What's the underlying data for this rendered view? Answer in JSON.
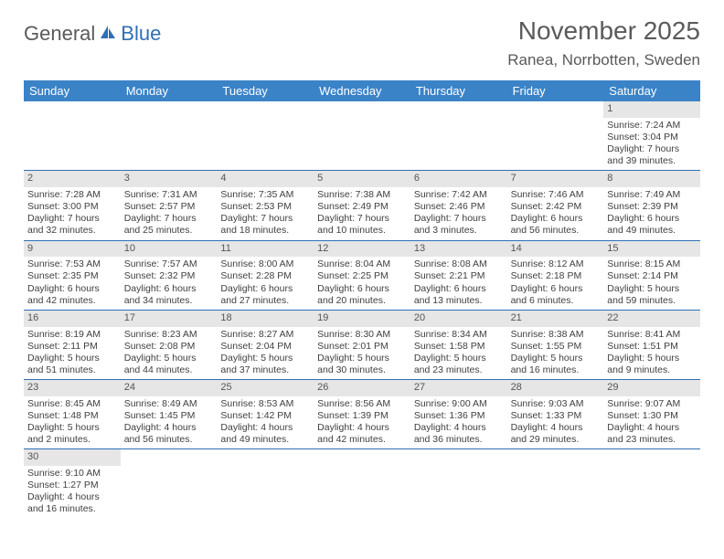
{
  "logo": {
    "text1": "General",
    "text2": "Blue"
  },
  "title": "November 2025",
  "location": "Ranea, Norrbotten, Sweden",
  "weekdays": [
    "Sunday",
    "Monday",
    "Tuesday",
    "Wednesday",
    "Thursday",
    "Friday",
    "Saturday"
  ],
  "colors": {
    "header_bg": "#3b83c7",
    "border": "#2f6fb5",
    "daynum_bg": "#e6e6e6",
    "text": "#404040"
  },
  "weeks": [
    [
      null,
      null,
      null,
      null,
      null,
      null,
      {
        "n": "1",
        "sunrise": "Sunrise: 7:24 AM",
        "sunset": "Sunset: 3:04 PM",
        "daylight": "Daylight: 7 hours and 39 minutes."
      }
    ],
    [
      {
        "n": "2",
        "sunrise": "Sunrise: 7:28 AM",
        "sunset": "Sunset: 3:00 PM",
        "daylight": "Daylight: 7 hours and 32 minutes."
      },
      {
        "n": "3",
        "sunrise": "Sunrise: 7:31 AM",
        "sunset": "Sunset: 2:57 PM",
        "daylight": "Daylight: 7 hours and 25 minutes."
      },
      {
        "n": "4",
        "sunrise": "Sunrise: 7:35 AM",
        "sunset": "Sunset: 2:53 PM",
        "daylight": "Daylight: 7 hours and 18 minutes."
      },
      {
        "n": "5",
        "sunrise": "Sunrise: 7:38 AM",
        "sunset": "Sunset: 2:49 PM",
        "daylight": "Daylight: 7 hours and 10 minutes."
      },
      {
        "n": "6",
        "sunrise": "Sunrise: 7:42 AM",
        "sunset": "Sunset: 2:46 PM",
        "daylight": "Daylight: 7 hours and 3 minutes."
      },
      {
        "n": "7",
        "sunrise": "Sunrise: 7:46 AM",
        "sunset": "Sunset: 2:42 PM",
        "daylight": "Daylight: 6 hours and 56 minutes."
      },
      {
        "n": "8",
        "sunrise": "Sunrise: 7:49 AM",
        "sunset": "Sunset: 2:39 PM",
        "daylight": "Daylight: 6 hours and 49 minutes."
      }
    ],
    [
      {
        "n": "9",
        "sunrise": "Sunrise: 7:53 AM",
        "sunset": "Sunset: 2:35 PM",
        "daylight": "Daylight: 6 hours and 42 minutes."
      },
      {
        "n": "10",
        "sunrise": "Sunrise: 7:57 AM",
        "sunset": "Sunset: 2:32 PM",
        "daylight": "Daylight: 6 hours and 34 minutes."
      },
      {
        "n": "11",
        "sunrise": "Sunrise: 8:00 AM",
        "sunset": "Sunset: 2:28 PM",
        "daylight": "Daylight: 6 hours and 27 minutes."
      },
      {
        "n": "12",
        "sunrise": "Sunrise: 8:04 AM",
        "sunset": "Sunset: 2:25 PM",
        "daylight": "Daylight: 6 hours and 20 minutes."
      },
      {
        "n": "13",
        "sunrise": "Sunrise: 8:08 AM",
        "sunset": "Sunset: 2:21 PM",
        "daylight": "Daylight: 6 hours and 13 minutes."
      },
      {
        "n": "14",
        "sunrise": "Sunrise: 8:12 AM",
        "sunset": "Sunset: 2:18 PM",
        "daylight": "Daylight: 6 hours and 6 minutes."
      },
      {
        "n": "15",
        "sunrise": "Sunrise: 8:15 AM",
        "sunset": "Sunset: 2:14 PM",
        "daylight": "Daylight: 5 hours and 59 minutes."
      }
    ],
    [
      {
        "n": "16",
        "sunrise": "Sunrise: 8:19 AM",
        "sunset": "Sunset: 2:11 PM",
        "daylight": "Daylight: 5 hours and 51 minutes."
      },
      {
        "n": "17",
        "sunrise": "Sunrise: 8:23 AM",
        "sunset": "Sunset: 2:08 PM",
        "daylight": "Daylight: 5 hours and 44 minutes."
      },
      {
        "n": "18",
        "sunrise": "Sunrise: 8:27 AM",
        "sunset": "Sunset: 2:04 PM",
        "daylight": "Daylight: 5 hours and 37 minutes."
      },
      {
        "n": "19",
        "sunrise": "Sunrise: 8:30 AM",
        "sunset": "Sunset: 2:01 PM",
        "daylight": "Daylight: 5 hours and 30 minutes."
      },
      {
        "n": "20",
        "sunrise": "Sunrise: 8:34 AM",
        "sunset": "Sunset: 1:58 PM",
        "daylight": "Daylight: 5 hours and 23 minutes."
      },
      {
        "n": "21",
        "sunrise": "Sunrise: 8:38 AM",
        "sunset": "Sunset: 1:55 PM",
        "daylight": "Daylight: 5 hours and 16 minutes."
      },
      {
        "n": "22",
        "sunrise": "Sunrise: 8:41 AM",
        "sunset": "Sunset: 1:51 PM",
        "daylight": "Daylight: 5 hours and 9 minutes."
      }
    ],
    [
      {
        "n": "23",
        "sunrise": "Sunrise: 8:45 AM",
        "sunset": "Sunset: 1:48 PM",
        "daylight": "Daylight: 5 hours and 2 minutes."
      },
      {
        "n": "24",
        "sunrise": "Sunrise: 8:49 AM",
        "sunset": "Sunset: 1:45 PM",
        "daylight": "Daylight: 4 hours and 56 minutes."
      },
      {
        "n": "25",
        "sunrise": "Sunrise: 8:53 AM",
        "sunset": "Sunset: 1:42 PM",
        "daylight": "Daylight: 4 hours and 49 minutes."
      },
      {
        "n": "26",
        "sunrise": "Sunrise: 8:56 AM",
        "sunset": "Sunset: 1:39 PM",
        "daylight": "Daylight: 4 hours and 42 minutes."
      },
      {
        "n": "27",
        "sunrise": "Sunrise: 9:00 AM",
        "sunset": "Sunset: 1:36 PM",
        "daylight": "Daylight: 4 hours and 36 minutes."
      },
      {
        "n": "28",
        "sunrise": "Sunrise: 9:03 AM",
        "sunset": "Sunset: 1:33 PM",
        "daylight": "Daylight: 4 hours and 29 minutes."
      },
      {
        "n": "29",
        "sunrise": "Sunrise: 9:07 AM",
        "sunset": "Sunset: 1:30 PM",
        "daylight": "Daylight: 4 hours and 23 minutes."
      }
    ],
    [
      {
        "n": "30",
        "sunrise": "Sunrise: 9:10 AM",
        "sunset": "Sunset: 1:27 PM",
        "daylight": "Daylight: 4 hours and 16 minutes."
      },
      null,
      null,
      null,
      null,
      null,
      null
    ]
  ]
}
